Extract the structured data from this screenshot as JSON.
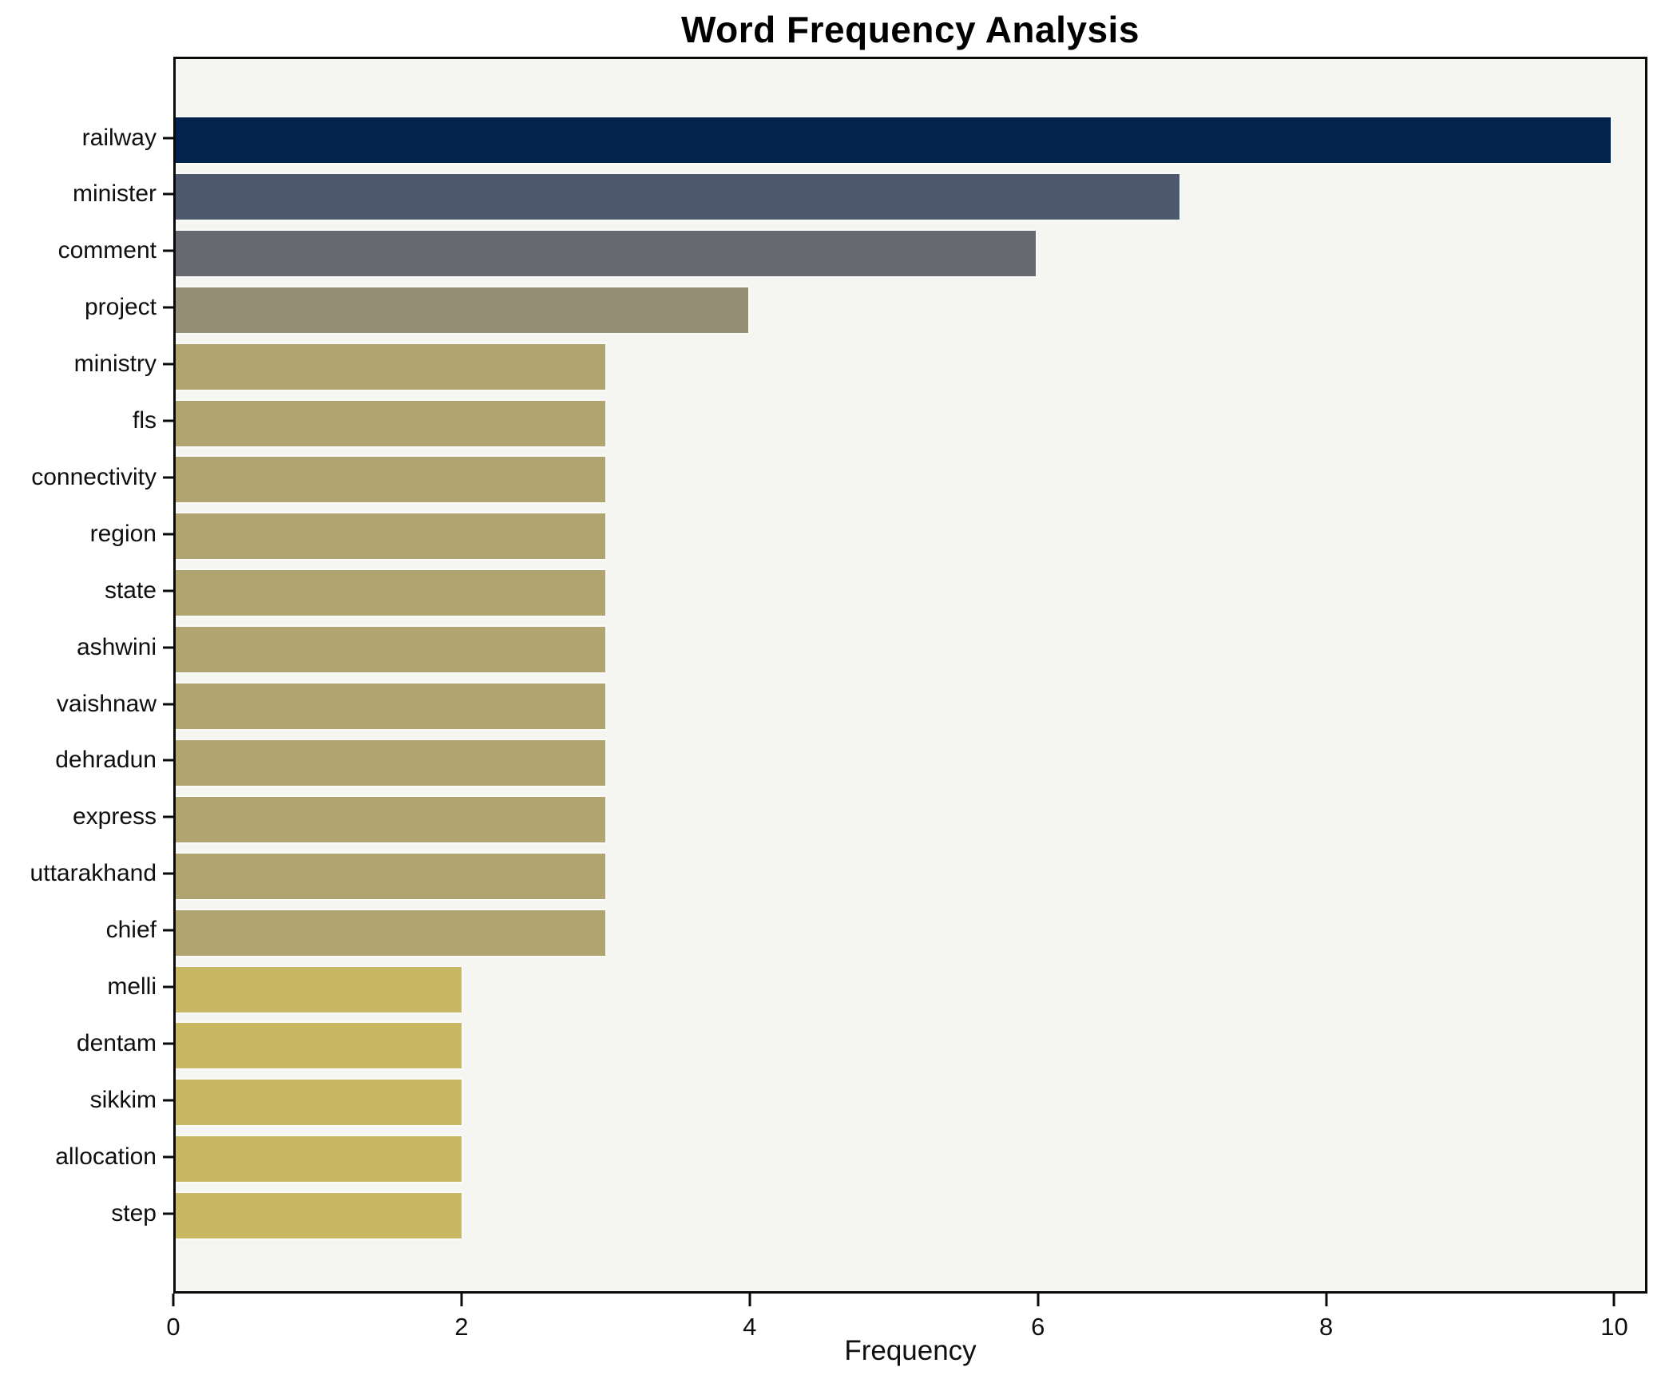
{
  "chart_data": {
    "type": "bar",
    "orientation": "horizontal",
    "title": "Word Frequency Analysis",
    "xlabel": "Frequency",
    "ylabel": "",
    "categories": [
      "railway",
      "minister",
      "comment",
      "project",
      "ministry",
      "fls",
      "connectivity",
      "region",
      "state",
      "ashwini",
      "vaishnaw",
      "dehradun",
      "express",
      "uttarakhand",
      "chief",
      "melli",
      "dentam",
      "sikkim",
      "allocation",
      "step"
    ],
    "values": [
      10,
      7,
      6,
      4,
      3,
      3,
      3,
      3,
      3,
      3,
      3,
      3,
      3,
      3,
      3,
      2,
      2,
      2,
      2,
      2
    ],
    "xticks": [
      0,
      2,
      4,
      6,
      8,
      10
    ],
    "xlim": [
      0,
      10.23
    ],
    "grid": false,
    "legend": "none",
    "plot_background": "#f5f5f2",
    "figure_background": "#ffffff",
    "spine_color": "#0a0a0a",
    "color_by_value": {
      "10": "#02234e",
      "7": "#4e586e",
      "6": "#666a70",
      "4": "#948e74",
      "3": "#b0a570",
      "2": "#c8b763"
    }
  }
}
